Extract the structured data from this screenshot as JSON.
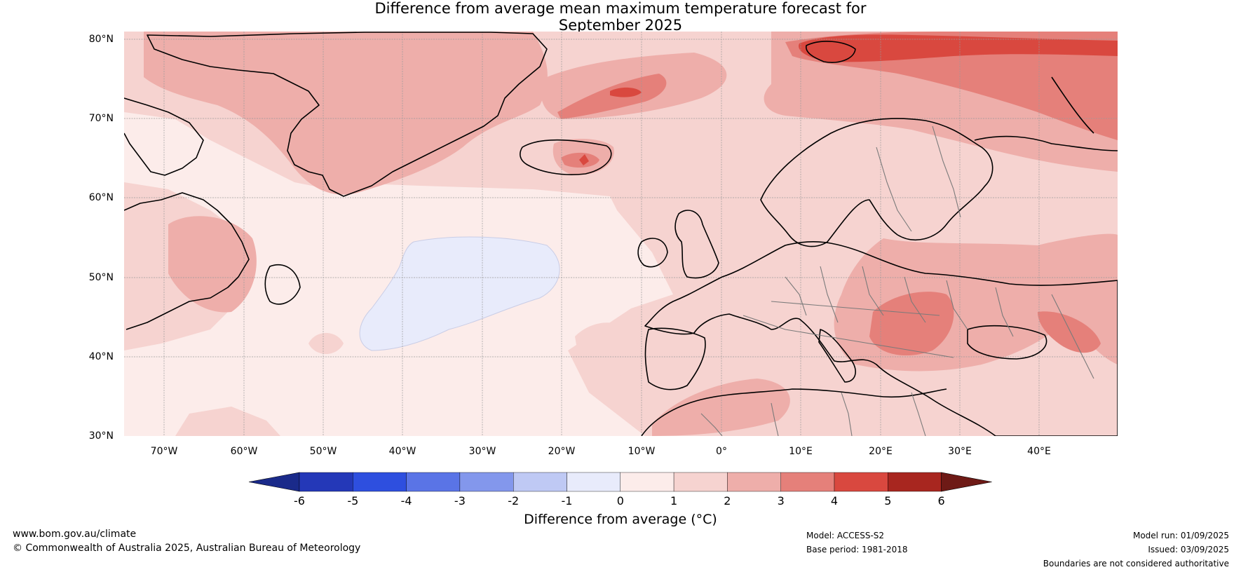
{
  "title_line1": "Difference from average mean maximum temperature forecast for",
  "title_line2": "September 2025",
  "map": {
    "lat_labels": [
      "80°N",
      "70°N",
      "60°N",
      "50°N",
      "40°N",
      "30°N"
    ],
    "lon_labels": [
      "70°W",
      "60°W",
      "50°W",
      "40°W",
      "30°W",
      "20°W",
      "10°W",
      "0°",
      "10°E",
      "20°E",
      "30°E",
      "40°E"
    ],
    "background_anomaly_color": "#fbe9e7"
  },
  "colorbar": {
    "ticks": [
      "-6",
      "-5",
      "-4",
      "-3",
      "-2",
      "-1",
      "0",
      "1",
      "2",
      "3",
      "4",
      "5",
      "6"
    ],
    "colors": [
      "#1a2a8a",
      "#2438b8",
      "#2e4fdf",
      "#5a74e6",
      "#8397ec",
      "#bfc9f4",
      "#e8ebfb",
      "#fcecea",
      "#f6d3d0",
      "#eeaeaa",
      "#e5807a",
      "#d9483f",
      "#a8261f",
      "#6e1a16"
    ],
    "label": "Difference from average (°C)"
  },
  "footer": {
    "website": "www.bom.gov.au/climate",
    "copyright": "© Commonwealth of Australia 2025, Australian Bureau of Meteorology",
    "model": "Model: ACCESS-S2",
    "base_period": "Base period: 1981-2018",
    "model_run": "Model run: 01/09/2025",
    "issued": "Issued: 03/09/2025",
    "disclaimer": "Boundaries are not considered authoritative"
  }
}
